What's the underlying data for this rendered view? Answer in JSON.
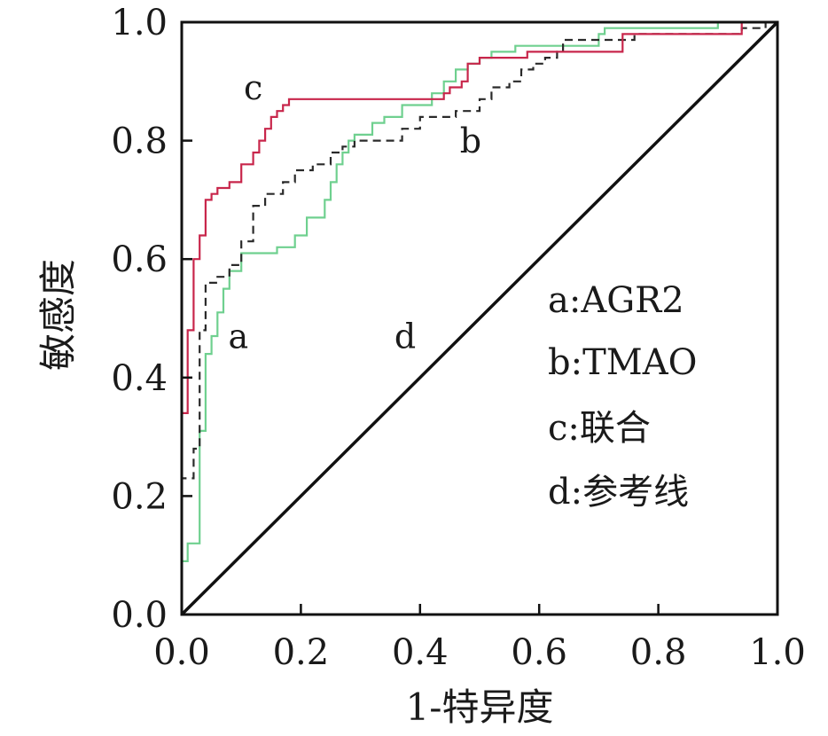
{
  "chart_data": {
    "type": "line",
    "title": "",
    "xlabel": "1-特异度",
    "ylabel": "敏感度",
    "xlim": [
      0,
      1
    ],
    "ylim": [
      0,
      1
    ],
    "x_ticks": [
      "0.0",
      "0.2",
      "0.4",
      "0.6",
      "0.8",
      "1.0"
    ],
    "y_ticks": [
      "0.0",
      "0.2",
      "0.4",
      "0.6",
      "0.8",
      "1.0"
    ],
    "grid": false,
    "legend_position": "right",
    "legend": [
      "a:AGR2",
      "b:TMAO",
      "c:联合",
      "d:参考线"
    ],
    "series": [
      {
        "key": "a",
        "name": "AGR2",
        "label": "a",
        "color": "#6fd08f",
        "style": "solid",
        "x": [
          0,
          0,
          0.01,
          0.01,
          0.03,
          0.03,
          0.04,
          0.04,
          0.05,
          0.05,
          0.06,
          0.06,
          0.07,
          0.07,
          0.08,
          0.08,
          0.1,
          0.1,
          0.16,
          0.16,
          0.19,
          0.19,
          0.21,
          0.21,
          0.24,
          0.24,
          0.25,
          0.25,
          0.26,
          0.26,
          0.27,
          0.27,
          0.28,
          0.28,
          0.29,
          0.29,
          0.32,
          0.32,
          0.34,
          0.34,
          0.37,
          0.37,
          0.42,
          0.42,
          0.44,
          0.44,
          0.46,
          0.46,
          0.48,
          0.48,
          0.5,
          0.5,
          0.52,
          0.52,
          0.56,
          0.56,
          0.7,
          0.7,
          0.71,
          0.71,
          0.9,
          0.9,
          1.0
        ],
        "y": [
          0,
          0.09,
          0.09,
          0.12,
          0.12,
          0.31,
          0.31,
          0.44,
          0.44,
          0.47,
          0.47,
          0.51,
          0.51,
          0.55,
          0.55,
          0.58,
          0.58,
          0.61,
          0.61,
          0.62,
          0.62,
          0.64,
          0.64,
          0.67,
          0.67,
          0.7,
          0.7,
          0.73,
          0.73,
          0.76,
          0.76,
          0.78,
          0.78,
          0.8,
          0.8,
          0.81,
          0.81,
          0.83,
          0.83,
          0.84,
          0.84,
          0.86,
          0.86,
          0.88,
          0.88,
          0.9,
          0.9,
          0.92,
          0.92,
          0.93,
          0.93,
          0.94,
          0.94,
          0.95,
          0.95,
          0.96,
          0.96,
          0.98,
          0.98,
          0.99,
          0.99,
          1.0,
          1.0
        ]
      },
      {
        "key": "b",
        "name": "TMAO",
        "label": "b",
        "color": "#2a2a2a",
        "style": "dashed",
        "x": [
          0,
          0,
          0.02,
          0.02,
          0.03,
          0.03,
          0.04,
          0.04,
          0.06,
          0.06,
          0.08,
          0.08,
          0.1,
          0.1,
          0.12,
          0.12,
          0.14,
          0.14,
          0.17,
          0.17,
          0.19,
          0.19,
          0.22,
          0.22,
          0.25,
          0.25,
          0.27,
          0.27,
          0.29,
          0.29,
          0.37,
          0.37,
          0.4,
          0.4,
          0.46,
          0.46,
          0.5,
          0.5,
          0.52,
          0.52,
          0.55,
          0.55,
          0.57,
          0.57,
          0.59,
          0.59,
          0.61,
          0.61,
          0.63,
          0.63,
          0.64,
          0.64,
          0.76,
          0.76,
          0.94,
          0.94,
          0.98,
          0.98,
          1.0
        ],
        "y": [
          0,
          0.23,
          0.23,
          0.28,
          0.28,
          0.48,
          0.48,
          0.56,
          0.56,
          0.57,
          0.57,
          0.59,
          0.59,
          0.63,
          0.63,
          0.69,
          0.69,
          0.71,
          0.71,
          0.73,
          0.73,
          0.75,
          0.75,
          0.76,
          0.76,
          0.78,
          0.78,
          0.79,
          0.79,
          0.8,
          0.8,
          0.82,
          0.82,
          0.84,
          0.84,
          0.85,
          0.85,
          0.87,
          0.87,
          0.89,
          0.89,
          0.9,
          0.9,
          0.92,
          0.92,
          0.93,
          0.93,
          0.94,
          0.94,
          0.95,
          0.95,
          0.97,
          0.97,
          0.98,
          0.98,
          0.99,
          0.99,
          1.0,
          1.0
        ]
      },
      {
        "key": "c",
        "name": "联合",
        "label": "c",
        "color": "#c8264b",
        "style": "solid",
        "x": [
          0,
          0,
          0.01,
          0.01,
          0.02,
          0.02,
          0.03,
          0.03,
          0.04,
          0.04,
          0.05,
          0.05,
          0.06,
          0.06,
          0.08,
          0.08,
          0.1,
          0.1,
          0.12,
          0.12,
          0.13,
          0.13,
          0.14,
          0.14,
          0.15,
          0.15,
          0.16,
          0.16,
          0.17,
          0.17,
          0.18,
          0.18,
          0.44,
          0.44,
          0.45,
          0.45,
          0.47,
          0.47,
          0.48,
          0.48,
          0.5,
          0.5,
          0.58,
          0.58,
          0.74,
          0.74,
          0.94,
          0.94,
          1.0
        ],
        "y": [
          0,
          0.34,
          0.34,
          0.48,
          0.48,
          0.6,
          0.6,
          0.64,
          0.64,
          0.7,
          0.7,
          0.71,
          0.71,
          0.72,
          0.72,
          0.73,
          0.73,
          0.76,
          0.76,
          0.78,
          0.78,
          0.8,
          0.8,
          0.82,
          0.82,
          0.84,
          0.84,
          0.85,
          0.85,
          0.86,
          0.86,
          0.87,
          0.87,
          0.88,
          0.88,
          0.89,
          0.89,
          0.9,
          0.9,
          0.93,
          0.93,
          0.94,
          0.94,
          0.95,
          0.95,
          0.98,
          0.98,
          1.0,
          1.0
        ]
      },
      {
        "key": "d",
        "name": "参考线",
        "label": "d",
        "color": "#111111",
        "style": "solid",
        "x": [
          0,
          1
        ],
        "y": [
          0,
          1
        ]
      }
    ]
  }
}
